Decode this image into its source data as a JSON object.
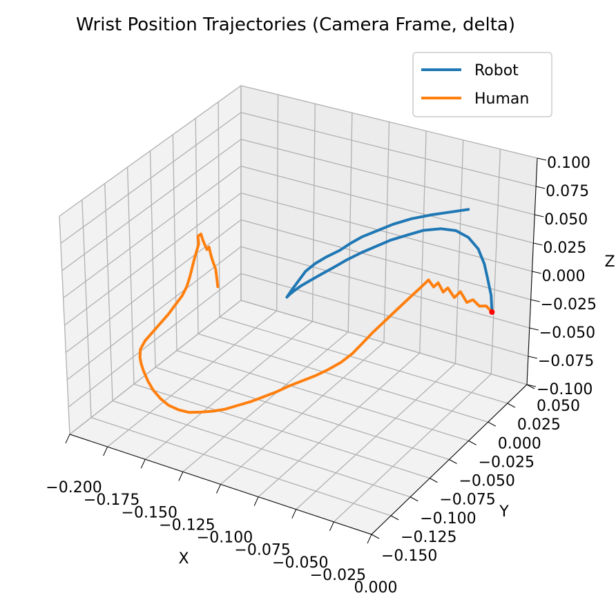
{
  "chart_data": {
    "type": "line3d",
    "title": "Wrist Position Trajectories (Camera Frame, delta)",
    "xlabel": "X",
    "ylabel": "Y",
    "zlabel": "Z",
    "xlim": [
      -0.2,
      0.0
    ],
    "ylim": [
      -0.15,
      0.05
    ],
    "zlim": [
      -0.1,
      0.1
    ],
    "x_ticks": [
      "−0.200",
      "−0.175",
      "−0.150",
      "−0.125",
      "−0.100",
      "−0.075",
      "−0.050",
      "−0.025",
      "0.000"
    ],
    "y_ticks": [
      "−0.150",
      "−0.125",
      "−0.100",
      "−0.075",
      "−0.050",
      "−0.025",
      "0.000",
      "0.025",
      "0.050"
    ],
    "z_ticks": [
      "−0.100",
      "−0.075",
      "−0.050",
      "−0.025",
      "0.000",
      "0.025",
      "0.050",
      "0.075",
      "0.100"
    ],
    "grid": true,
    "legend": {
      "placement": "top-right",
      "entries": [
        "Robot",
        "Human"
      ]
    },
    "series": [
      {
        "name": "Robot",
        "color": "#1f77b4",
        "points": [
          [
            0,
            0,
            0
          ],
          [
            -0.003,
            0.004,
            0.011
          ],
          [
            -0.008,
            0.008,
            0.022
          ],
          [
            -0.012,
            0.011,
            0.031
          ],
          [
            -0.018,
            0.014,
            0.04
          ],
          [
            -0.026,
            0.016,
            0.046
          ],
          [
            -0.035,
            0.017,
            0.048
          ],
          [
            -0.045,
            0.017,
            0.046
          ],
          [
            -0.055,
            0.014,
            0.043
          ],
          [
            -0.064,
            0.01,
            0.038
          ],
          [
            -0.072,
            0.005,
            0.034
          ],
          [
            -0.079,
            0.0,
            0.029
          ],
          [
            -0.086,
            -0.005,
            0.024
          ],
          [
            -0.093,
            -0.01,
            0.018
          ],
          [
            -0.099,
            -0.015,
            0.012
          ],
          [
            -0.105,
            -0.019,
            0.006
          ],
          [
            -0.11,
            -0.023,
            0.001
          ],
          [
            -0.114,
            -0.027,
            -0.003
          ],
          [
            -0.117,
            -0.03,
            -0.007
          ],
          [
            -0.119,
            -0.032,
            -0.01
          ],
          [
            -0.12,
            -0.033,
            -0.012
          ],
          [
            -0.118,
            -0.031,
            -0.006
          ],
          [
            -0.115,
            -0.028,
            0.002
          ],
          [
            -0.112,
            -0.025,
            0.01
          ],
          [
            -0.108,
            -0.021,
            0.016
          ],
          [
            -0.103,
            -0.016,
            0.021
          ],
          [
            -0.097,
            -0.011,
            0.026
          ],
          [
            -0.092,
            -0.008,
            0.032
          ],
          [
            -0.086,
            -0.004,
            0.038
          ],
          [
            -0.078,
            0.0,
            0.044
          ],
          [
            -0.07,
            0.004,
            0.05
          ],
          [
            -0.06,
            0.008,
            0.056
          ],
          [
            -0.048,
            0.011,
            0.062
          ],
          [
            -0.037,
            0.013,
            0.067
          ],
          [
            -0.026,
            0.015,
            0.072
          ]
        ]
      },
      {
        "name": "Human",
        "color": "#ff7f0e",
        "points": [
          [
            0,
            0,
            0
          ],
          [
            -0.004,
            0.0,
            0.004
          ],
          [
            -0.008,
            -0.001,
            0.003
          ],
          [
            -0.012,
            -0.002,
            0.008
          ],
          [
            -0.016,
            -0.002,
            0.004
          ],
          [
            -0.02,
            -0.003,
            0.013
          ],
          [
            -0.024,
            -0.003,
            0.006
          ],
          [
            -0.028,
            -0.004,
            0.014
          ],
          [
            -0.031,
            -0.004,
            0.009
          ],
          [
            -0.034,
            -0.005,
            0.017
          ],
          [
            -0.037,
            -0.005,
            0.012
          ],
          [
            -0.04,
            -0.006,
            0.018
          ],
          [
            -0.044,
            -0.009,
            0.011
          ],
          [
            -0.047,
            -0.013,
            0.006
          ],
          [
            -0.05,
            -0.018,
            0.001
          ],
          [
            -0.054,
            -0.023,
            -0.006
          ],
          [
            -0.058,
            -0.028,
            -0.013
          ],
          [
            -0.062,
            -0.033,
            -0.02
          ],
          [
            -0.066,
            -0.038,
            -0.028
          ],
          [
            -0.07,
            -0.043,
            -0.036
          ],
          [
            -0.075,
            -0.048,
            -0.043
          ],
          [
            -0.081,
            -0.053,
            -0.049
          ],
          [
            -0.087,
            -0.058,
            -0.054
          ],
          [
            -0.093,
            -0.063,
            -0.058
          ],
          [
            -0.099,
            -0.068,
            -0.062
          ],
          [
            -0.105,
            -0.073,
            -0.067
          ],
          [
            -0.111,
            -0.078,
            -0.071
          ],
          [
            -0.116,
            -0.083,
            -0.074
          ],
          [
            -0.122,
            -0.088,
            -0.077
          ],
          [
            -0.128,
            -0.093,
            -0.08
          ],
          [
            -0.134,
            -0.097,
            -0.082
          ],
          [
            -0.14,
            -0.101,
            -0.083
          ],
          [
            -0.146,
            -0.104,
            -0.084
          ],
          [
            -0.152,
            -0.106,
            -0.083
          ],
          [
            -0.158,
            -0.107,
            -0.081
          ],
          [
            -0.164,
            -0.106,
            -0.078
          ],
          [
            -0.17,
            -0.104,
            -0.074
          ],
          [
            -0.175,
            -0.101,
            -0.07
          ],
          [
            -0.18,
            -0.097,
            -0.066
          ],
          [
            -0.184,
            -0.093,
            -0.063
          ],
          [
            -0.187,
            -0.089,
            -0.061
          ],
          [
            -0.189,
            -0.085,
            -0.057
          ],
          [
            -0.188,
            -0.081,
            -0.051
          ],
          [
            -0.185,
            -0.077,
            -0.044
          ],
          [
            -0.182,
            -0.073,
            -0.037
          ],
          [
            -0.179,
            -0.069,
            -0.03
          ],
          [
            -0.176,
            -0.066,
            -0.022
          ],
          [
            -0.173,
            -0.063,
            -0.014
          ],
          [
            -0.171,
            -0.061,
            -0.006
          ],
          [
            -0.17,
            -0.059,
            0.002
          ],
          [
            -0.169,
            -0.058,
            0.01
          ],
          [
            -0.168,
            -0.057,
            0.018
          ],
          [
            -0.167,
            -0.056,
            0.025
          ],
          [
            -0.166,
            -0.055,
            0.032
          ],
          [
            -0.167,
            -0.054,
            0.038
          ],
          [
            -0.165,
            -0.054,
            0.041
          ],
          [
            -0.163,
            -0.055,
            0.036
          ],
          [
            -0.16,
            -0.056,
            0.03
          ],
          [
            -0.158,
            -0.057,
            0.034
          ],
          [
            -0.156,
            -0.058,
            0.027
          ],
          [
            -0.154,
            -0.059,
            0.022
          ],
          [
            -0.152,
            -0.06,
            0.018
          ],
          [
            -0.151,
            -0.061,
            0.014
          ],
          [
            -0.15,
            -0.062,
            0.01
          ],
          [
            -0.149,
            -0.063,
            0.005
          ]
        ]
      }
    ]
  }
}
